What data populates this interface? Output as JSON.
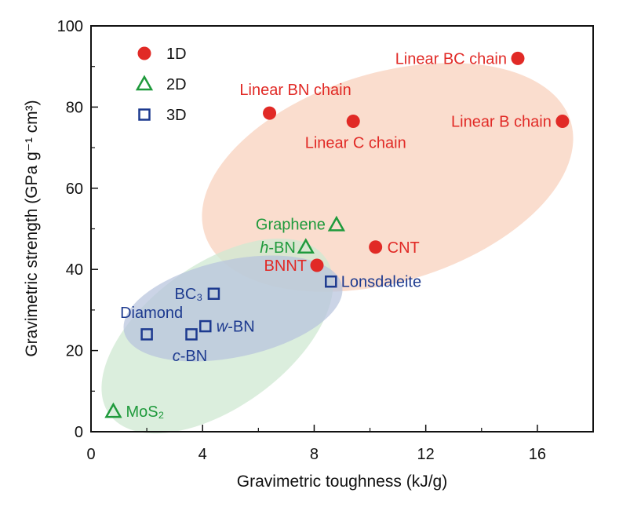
{
  "chart_data": {
    "type": "scatter",
    "xlabel": "Gravimetric toughness (kJ/g)",
    "ylabel": "Gravimetric strength (GPa g⁻¹ cm³)",
    "xlim": [
      0,
      18
    ],
    "ylim": [
      0,
      100
    ],
    "xticks": [
      0,
      4,
      8,
      12,
      16
    ],
    "yticks": [
      0,
      20,
      40,
      60,
      80,
      100
    ],
    "grid": false,
    "legend_position": "top-left",
    "colors": {
      "1D": "#e12a26",
      "2D": "#1f9a3c",
      "3D": "#1d3a8f"
    },
    "series": [
      {
        "name": "1D",
        "marker": "circle",
        "points": [
          {
            "label": "Linear BC chain",
            "x": 15.3,
            "y": 92
          },
          {
            "label": "Linear BN chain",
            "x": 6.4,
            "y": 78.5
          },
          {
            "label": "Linear C chain",
            "x": 9.4,
            "y": 76.5
          },
          {
            "label": "Linear B chain",
            "x": 16.9,
            "y": 76.5
          },
          {
            "label": "CNT",
            "x": 10.2,
            "y": 45.5
          },
          {
            "label": "BNNT",
            "x": 8.1,
            "y": 41
          }
        ]
      },
      {
        "name": "2D",
        "marker": "triangle",
        "points": [
          {
            "label": "Graphene",
            "x": 8.8,
            "y": 51
          },
          {
            "label": "h-BN",
            "x": 7.7,
            "y": 45.5
          },
          {
            "label": "MoS₂",
            "x": 0.8,
            "y": 5
          }
        ]
      },
      {
        "name": "3D",
        "marker": "square",
        "points": [
          {
            "label": "Lonsdaleite",
            "x": 8.6,
            "y": 37
          },
          {
            "label": "BC₃",
            "x": 4.4,
            "y": 34
          },
          {
            "label": "w-BN",
            "x": 4.1,
            "y": 26
          },
          {
            "label": "Diamond",
            "x": 2.0,
            "y": 24
          },
          {
            "label": "c-BN",
            "x": 3.6,
            "y": 24
          }
        ]
      }
    ],
    "regions": [
      {
        "group": "1D",
        "color": "#f6c6ae"
      },
      {
        "group": "2D",
        "color": "#cfe8d2"
      },
      {
        "group": "3D",
        "color": "#b7c4dd"
      }
    ]
  }
}
